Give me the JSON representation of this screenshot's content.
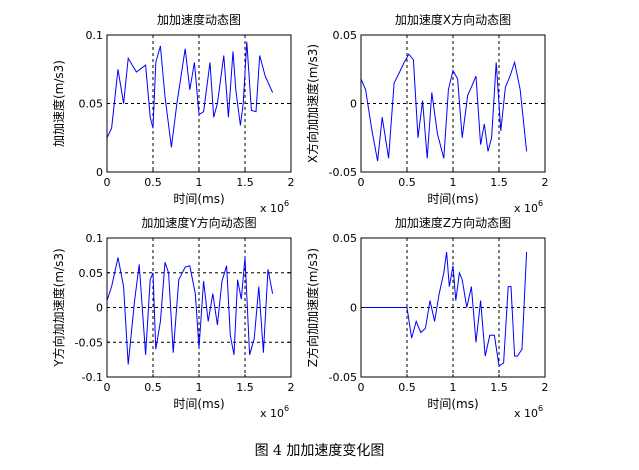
{
  "figure_caption": "图 4  加加速度变化图",
  "chart_data": [
    {
      "type": "line",
      "title": "加加速度动态图",
      "xlabel": "时间(ms)",
      "ylabel": "加加速度(m/s3)",
      "x_exponent_label": "x 10",
      "x_exponent": "6",
      "xlim": [
        0,
        2
      ],
      "ylim": [
        0,
        0.1
      ],
      "xticks": [
        "0",
        "0.5",
        "1",
        "1.5",
        "2"
      ],
      "yticks": [
        "0",
        "0.05",
        "0.1"
      ],
      "dashed_x": [
        0.5,
        1.0,
        1.5
      ],
      "dashed_y": [
        0.05
      ],
      "color": "#0000ff",
      "series": [
        {
          "x": [
            0.0,
            0.05,
            0.12,
            0.18,
            0.23,
            0.32,
            0.42,
            0.47,
            0.5,
            0.53,
            0.58,
            0.63,
            0.7,
            0.76,
            0.85,
            0.9,
            0.95,
            1.0,
            1.05,
            1.12,
            1.16,
            1.2,
            1.27,
            1.32,
            1.37,
            1.4,
            1.45,
            1.48,
            1.52,
            1.57,
            1.62,
            1.66,
            1.72,
            1.8
          ],
          "y": [
            0.025,
            0.032,
            0.075,
            0.05,
            0.083,
            0.073,
            0.078,
            0.04,
            0.032,
            0.08,
            0.092,
            0.055,
            0.018,
            0.05,
            0.09,
            0.06,
            0.08,
            0.042,
            0.044,
            0.08,
            0.04,
            0.05,
            0.085,
            0.04,
            0.088,
            0.06,
            0.034,
            0.05,
            0.095,
            0.045,
            0.044,
            0.085,
            0.07,
            0.058
          ]
        }
      ]
    },
    {
      "type": "line",
      "title": "加加速度X方向动态图",
      "xlabel": "时间(ms)",
      "ylabel": "X方向加加速度(m/s3)",
      "x_exponent_label": "x 10",
      "x_exponent": "6",
      "xlim": [
        0,
        2
      ],
      "ylim": [
        -0.05,
        0.05
      ],
      "xticks": [
        "0",
        "0.5",
        "1",
        "1.5",
        "2"
      ],
      "yticks": [
        "-0.05",
        "0",
        "0.05"
      ],
      "dashed_x": [
        0.5,
        1.0,
        1.5
      ],
      "dashed_y": [
        0
      ],
      "color": "#0000ff",
      "series": [
        {
          "x": [
            0.0,
            0.05,
            0.12,
            0.18,
            0.23,
            0.3,
            0.36,
            0.42,
            0.47,
            0.52,
            0.57,
            0.62,
            0.67,
            0.72,
            0.77,
            0.83,
            0.9,
            0.95,
            1.0,
            1.05,
            1.1,
            1.16,
            1.2,
            1.25,
            1.3,
            1.34,
            1.38,
            1.42,
            1.47,
            1.52,
            1.57,
            1.62,
            1.67,
            1.73,
            1.8
          ],
          "y": [
            0.018,
            0.01,
            -0.02,
            -0.042,
            -0.01,
            -0.04,
            0.015,
            0.023,
            0.03,
            0.036,
            0.032,
            -0.025,
            0.002,
            -0.04,
            0.008,
            -0.022,
            -0.04,
            0.01,
            0.024,
            0.018,
            -0.025,
            0.006,
            0.012,
            0.02,
            -0.03,
            -0.015,
            -0.035,
            -0.025,
            0.03,
            -0.02,
            0.012,
            0.02,
            0.03,
            0.01,
            -0.035
          ]
        }
      ]
    },
    {
      "type": "line",
      "title": "加加速度Y方向动态图",
      "xlabel": "时间(ms)",
      "ylabel": "Y方向加加速度(m/s3)",
      "x_exponent_label": "x 10",
      "x_exponent": "6",
      "xlim": [
        0,
        2
      ],
      "ylim": [
        -0.1,
        0.1
      ],
      "xticks": [
        "0",
        "0.5",
        "1",
        "1.5",
        "2"
      ],
      "yticks": [
        "-0.1",
        "-0.05",
        "0",
        "0.05",
        "0.1"
      ],
      "dashed_x": [
        0.5,
        1.0,
        1.5
      ],
      "dashed_y": [
        -0.05,
        0,
        0.05
      ],
      "color": "#0000ff",
      "series": [
        {
          "x": [
            0.0,
            0.05,
            0.12,
            0.18,
            0.23,
            0.3,
            0.35,
            0.42,
            0.47,
            0.5,
            0.53,
            0.58,
            0.63,
            0.67,
            0.72,
            0.78,
            0.85,
            0.9,
            0.96,
            1.0,
            1.05,
            1.1,
            1.15,
            1.2,
            1.25,
            1.3,
            1.34,
            1.38,
            1.42,
            1.46,
            1.5,
            1.55,
            1.6,
            1.65,
            1.7,
            1.75,
            1.8
          ],
          "y": [
            0.01,
            0.03,
            0.072,
            0.03,
            -0.082,
            0.01,
            0.062,
            -0.068,
            0.04,
            0.05,
            -0.06,
            -0.02,
            0.065,
            0.05,
            -0.065,
            0.04,
            0.058,
            0.06,
            0.02,
            -0.058,
            0.038,
            -0.02,
            0.02,
            -0.025,
            0.038,
            0.06,
            -0.04,
            -0.068,
            0.04,
            0.012,
            0.072,
            -0.068,
            -0.045,
            0.03,
            -0.065,
            0.055,
            0.02
          ]
        }
      ]
    },
    {
      "type": "line",
      "title": "加加速度Z方向动态图",
      "xlabel": "时间(ms)",
      "ylabel": "Z方向加加速度(m/s3)",
      "x_exponent_label": "x 10",
      "x_exponent": "6",
      "xlim": [
        0,
        2
      ],
      "ylim": [
        -0.05,
        0.05
      ],
      "xticks": [
        "0",
        "0.5",
        "1",
        "1.5",
        "2"
      ],
      "yticks": [
        "-0.05",
        "0",
        "0.05"
      ],
      "dashed_x": [
        0.5,
        1.0,
        1.5
      ],
      "dashed_y": [
        0
      ],
      "color": "#0000ff",
      "series": [
        {
          "x": [
            0.0,
            0.3,
            0.5,
            0.55,
            0.6,
            0.65,
            0.7,
            0.75,
            0.8,
            0.85,
            0.9,
            0.93,
            0.96,
            1.0,
            1.03,
            1.07,
            1.1,
            1.15,
            1.2,
            1.25,
            1.3,
            1.35,
            1.4,
            1.45,
            1.5,
            1.55,
            1.6,
            1.63,
            1.67,
            1.7,
            1.75,
            1.8
          ],
          "y": [
            0.0,
            0.0,
            0.0,
            -0.022,
            -0.01,
            -0.018,
            -0.015,
            0.005,
            -0.01,
            0.01,
            0.025,
            0.04,
            0.015,
            0.03,
            0.005,
            0.025,
            0.02,
            0.0,
            0.015,
            -0.025,
            0.005,
            -0.035,
            -0.02,
            -0.02,
            -0.042,
            -0.04,
            0.015,
            0.015,
            -0.035,
            -0.035,
            -0.03,
            0.04
          ]
        }
      ]
    }
  ]
}
